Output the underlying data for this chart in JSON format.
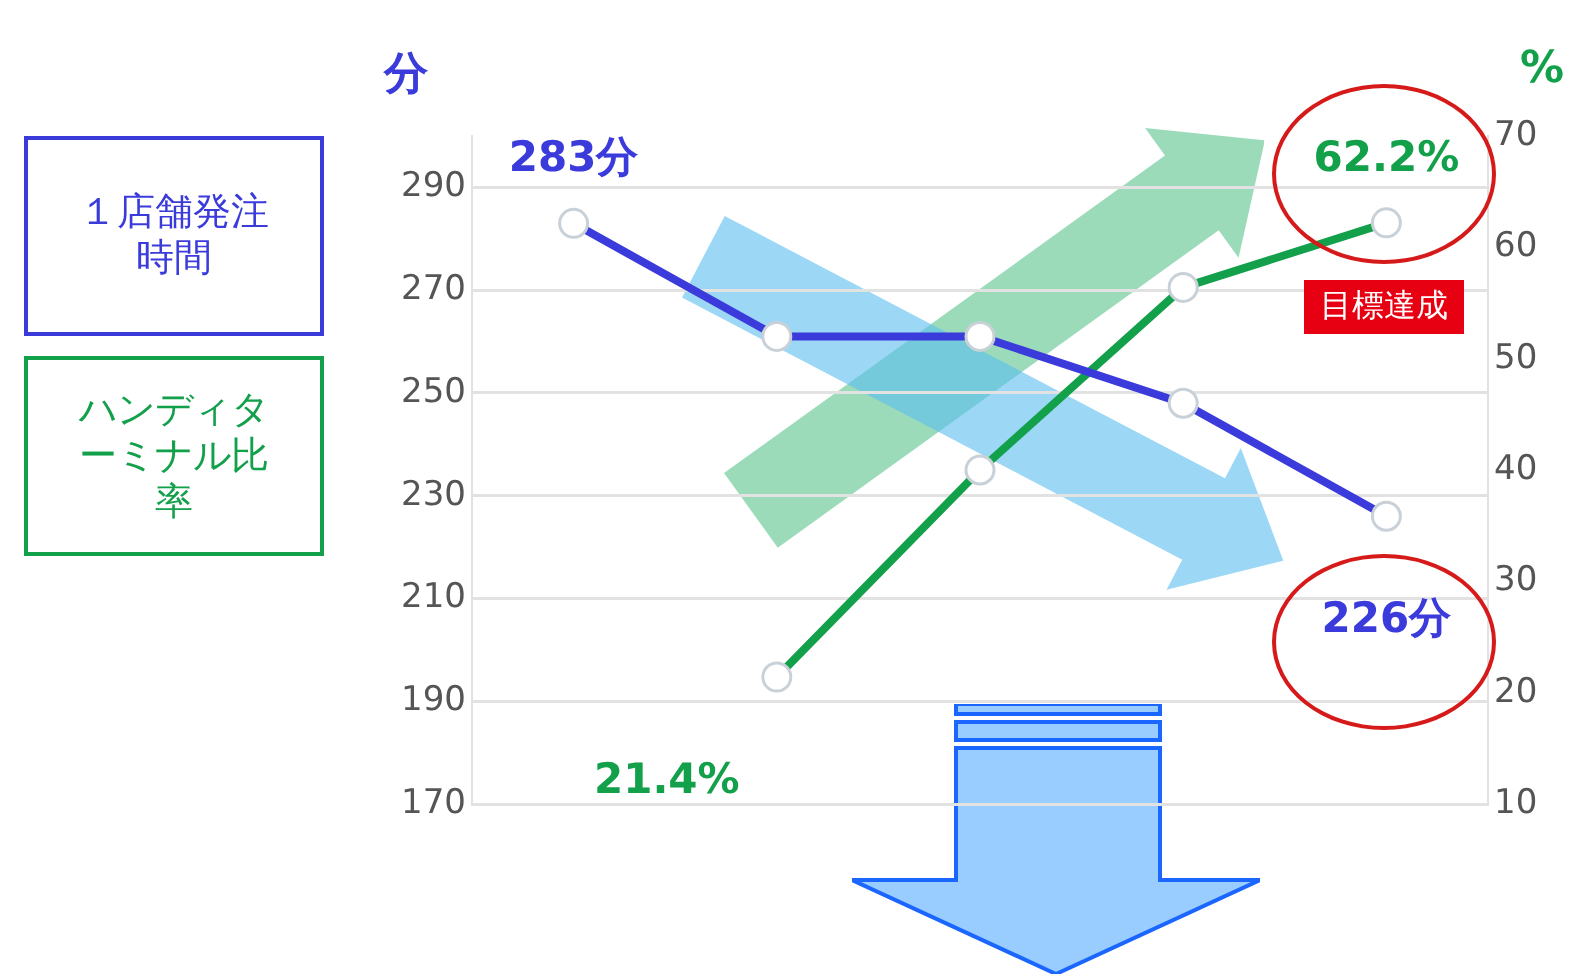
{
  "chart_data": {
    "type": "line",
    "ylabel": "分",
    "y2label": "%",
    "categories": [
      null,
      null,
      null,
      null,
      null
    ],
    "series": [
      {
        "name": "１店舗発注時間",
        "color": "#3b3bdc",
        "values": [
          283,
          261,
          261,
          248,
          226
        ],
        "value_labels": [
          "283分",
          null,
          null,
          null,
          "226分"
        ]
      },
      {
        "name": "ハンディターミナル比率",
        "color": "#12a04a",
        "axis": "y2",
        "values": [
          null,
          21.4,
          40,
          56.4,
          62.2
        ],
        "value_labels": [
          null,
          "21.4%",
          null,
          null,
          "62.2%"
        ]
      }
    ],
    "ylim": [
      170,
      300
    ],
    "yticks": [
      170,
      190,
      210,
      230,
      250,
      270,
      290
    ],
    "y2lim": [
      10,
      70
    ],
    "y2ticks": [
      10,
      20,
      30,
      40,
      50,
      60,
      70
    ],
    "annotations": [
      "目標達成"
    ],
    "grid": "y",
    "legend": "left",
    "tick_labels": "y",
    "marker": "circle",
    "line_style": "solid"
  }
}
